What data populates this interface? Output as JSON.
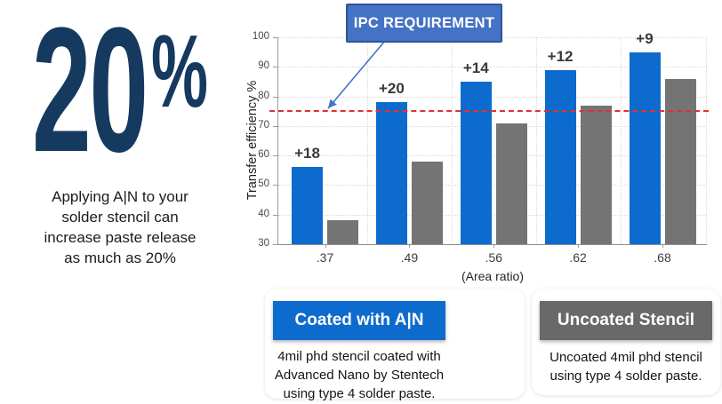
{
  "stat_panel": {
    "big_number": "20",
    "percent_sign": "%",
    "caption_lines": [
      "Applying A|N to your",
      "solder stencil can",
      "increase paste release",
      "as much as 20%"
    ]
  },
  "chart_data": {
    "type": "bar",
    "title": "",
    "categories": [
      ".37",
      ".49",
      ".56",
      ".62",
      ".68"
    ],
    "series": [
      {
        "name": "Coated with A|N",
        "color": "#0e6bce",
        "values": [
          56,
          78,
          85,
          89,
          95
        ]
      },
      {
        "name": "Uncoated Stencil",
        "color": "#747474",
        "values": [
          38,
          58,
          71,
          77,
          86
        ]
      }
    ],
    "bar_labels": [
      "+18",
      "+20",
      "+14",
      "+12",
      "+9"
    ],
    "xlabel": "(Area ratio)",
    "ylabel": "Transfer efficiency %",
    "ylim": [
      30,
      100
    ],
    "ytick_step": 10,
    "grid": true,
    "legend_position": "bottom",
    "reference_line": {
      "label": "IPC REQUIREMENT",
      "value": 75,
      "color": "#e03131",
      "style": "dashed"
    }
  },
  "legend": {
    "coated": {
      "title": "Coated with A|N",
      "color": "#0e6bce",
      "description_lines": [
        "4mil phd stencil coated with",
        "Advanced Nano by Stentech",
        "using type 4 solder paste."
      ]
    },
    "uncoated": {
      "title": "Uncoated Stencil",
      "color": "#696969",
      "description_lines": [
        "Uncoated 4mil phd stencil",
        "using type 4 solder paste."
      ]
    }
  },
  "colors": {
    "navy_text": "#16395f",
    "coated_blue": "#0e6bce",
    "uncoated_gray": "#747474",
    "ipc_box_fill": "#4472c4",
    "ipc_box_border": "#2f5597",
    "reference_red": "#e03131"
  }
}
